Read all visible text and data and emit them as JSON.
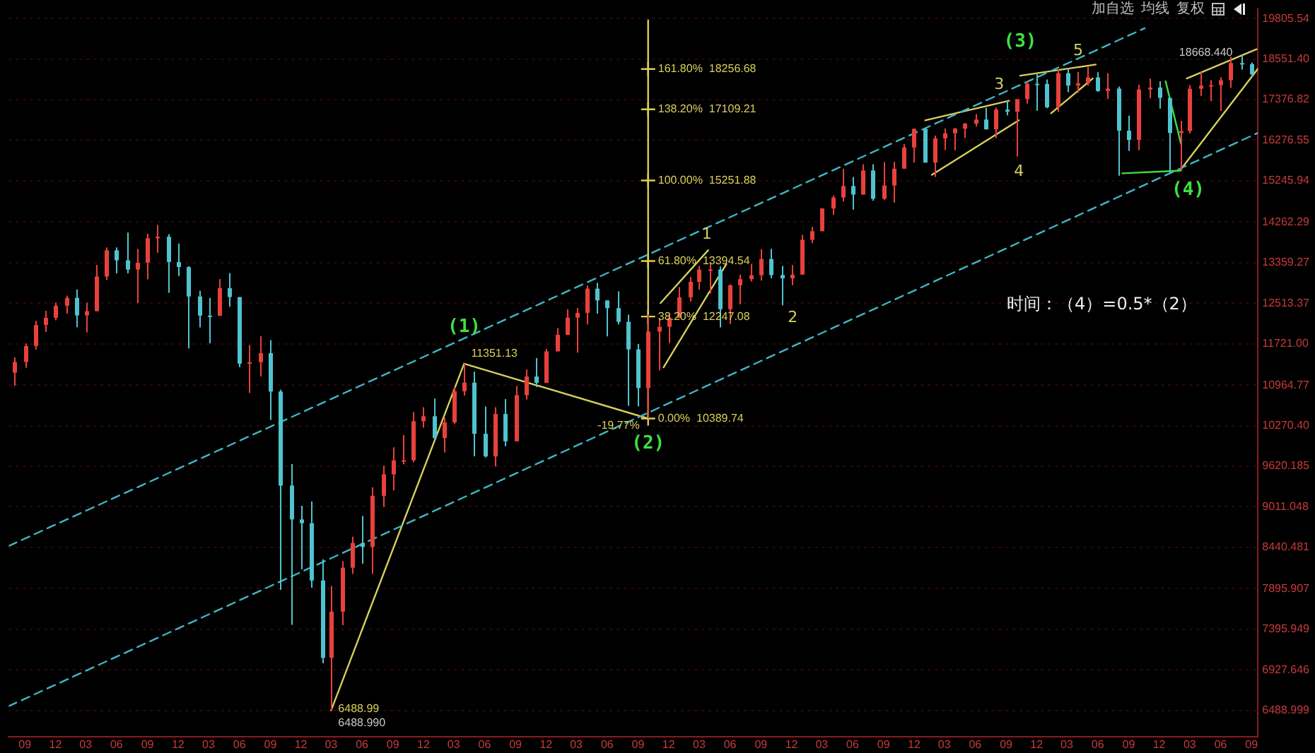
{
  "chart_data": {
    "type": "candlestick",
    "x": [
      "2006-08",
      "2006-09",
      "2006-10",
      "2006-11",
      "2006-12",
      "2007-01",
      "2007-02",
      "2007-03",
      "2007-04",
      "2007-05",
      "2007-06",
      "2007-07",
      "2007-08",
      "2007-09",
      "2007-10",
      "2007-11",
      "2007-12",
      "2008-01",
      "2008-02",
      "2008-03",
      "2008-04",
      "2008-05",
      "2008-06",
      "2008-07",
      "2008-08",
      "2008-09",
      "2008-10",
      "2008-11",
      "2008-12",
      "2009-01",
      "2009-02",
      "2009-03",
      "2009-04",
      "2009-05",
      "2009-06",
      "2009-07",
      "2009-08",
      "2009-09",
      "2009-10",
      "2009-11",
      "2009-12",
      "2010-01",
      "2010-02",
      "2010-03",
      "2010-04",
      "2010-05",
      "2010-06",
      "2010-07",
      "2010-08",
      "2010-09",
      "2010-10",
      "2010-11",
      "2010-12",
      "2011-01",
      "2011-02",
      "2011-03",
      "2011-04",
      "2011-05",
      "2011-06",
      "2011-07",
      "2011-08",
      "2011-09",
      "2011-10",
      "2011-11",
      "2011-12",
      "2012-01",
      "2012-02",
      "2012-03",
      "2012-04",
      "2012-05",
      "2012-06",
      "2012-07",
      "2012-08",
      "2012-09",
      "2012-10",
      "2012-11",
      "2012-12",
      "2013-01",
      "2013-02",
      "2013-03",
      "2013-04",
      "2013-05",
      "2013-06",
      "2013-07",
      "2013-08",
      "2013-09",
      "2013-10",
      "2013-11",
      "2013-12",
      "2014-01",
      "2014-02",
      "2014-03",
      "2014-04",
      "2014-05",
      "2014-06",
      "2014-07",
      "2014-08",
      "2014-09",
      "2014-10",
      "2014-11",
      "2014-12",
      "2015-01",
      "2015-02",
      "2015-03",
      "2015-04",
      "2015-05",
      "2015-06",
      "2015-07",
      "2015-08",
      "2015-09",
      "2015-10",
      "2015-11",
      "2015-12",
      "2016-01",
      "2016-02",
      "2016-03",
      "2016-04",
      "2016-05",
      "2016-06",
      "2016-07",
      "2016-08",
      "2016-09"
    ],
    "ohlc": [
      [
        11185,
        11465,
        10955,
        11381
      ],
      [
        11381,
        11725,
        11274,
        11679
      ],
      [
        11679,
        12163,
        11613,
        12081
      ],
      [
        12081,
        12361,
        11947,
        12222
      ],
      [
        12222,
        12529,
        12174,
        12463
      ],
      [
        12463,
        12666,
        12304,
        12622
      ],
      [
        12622,
        12796,
        12039,
        12269
      ],
      [
        12269,
        12524,
        11939,
        12354
      ],
      [
        12354,
        13312,
        12354,
        13063
      ],
      [
        13063,
        13692,
        12990,
        13628
      ],
      [
        13628,
        13692,
        13131,
        13409
      ],
      [
        13409,
        14022,
        13132,
        13212
      ],
      [
        13212,
        13658,
        12518,
        13358
      ],
      [
        13358,
        13996,
        13002,
        13896
      ],
      [
        13896,
        14198,
        13570,
        13930
      ],
      [
        13930,
        13987,
        12724,
        13372
      ],
      [
        13372,
        13779,
        13073,
        13265
      ],
      [
        13265,
        13279,
        11635,
        12650
      ],
      [
        12650,
        12767,
        12036,
        12266
      ],
      [
        12266,
        12622,
        11731,
        12263
      ],
      [
        12263,
        13010,
        12261,
        12820
      ],
      [
        12820,
        13136,
        12442,
        12638
      ],
      [
        12638,
        12638,
        11288,
        11350
      ],
      [
        11350,
        11698,
        10827,
        11378
      ],
      [
        11378,
        11867,
        11118,
        11544
      ],
      [
        11544,
        11790,
        10365,
        10851
      ],
      [
        10851,
        10882,
        7882,
        9325
      ],
      [
        9325,
        9654,
        7449,
        8829
      ],
      [
        8829,
        9026,
        8149,
        8776
      ],
      [
        8776,
        9088,
        7909,
        8001
      ],
      [
        8001,
        8280,
        7000,
        7063
      ],
      [
        7063,
        7932,
        6488.99,
        7609
      ],
      [
        7609,
        8254,
        7446,
        8168
      ],
      [
        8168,
        8588,
        8086,
        8500
      ],
      [
        8500,
        8878,
        8222,
        8447
      ],
      [
        8447,
        9297,
        8087,
        9172
      ],
      [
        9172,
        9630,
        9008,
        9496
      ],
      [
        9496,
        9918,
        9252,
        9712
      ],
      [
        9712,
        10119,
        9652,
        9713
      ],
      [
        9713,
        10496,
        9680,
        10345
      ],
      [
        10345,
        10580,
        10236,
        10428
      ],
      [
        10428,
        10730,
        10042,
        10067
      ],
      [
        10067,
        10402,
        9836,
        10325
      ],
      [
        10325,
        10933,
        10300,
        10857
      ],
      [
        10857,
        11351.13,
        10780,
        11009
      ],
      [
        11009,
        11205,
        9775,
        10137
      ],
      [
        10137,
        10594,
        9758,
        9774
      ],
      [
        9774,
        10580,
        9614,
        10466
      ],
      [
        10466,
        10720,
        9936,
        10015
      ],
      [
        10015,
        10948,
        10015,
        10788
      ],
      [
        10788,
        11246,
        10712,
        11118
      ],
      [
        11118,
        11451,
        10929,
        11006
      ],
      [
        11006,
        11625,
        11006,
        11578
      ],
      [
        11578,
        12020,
        11578,
        11892
      ],
      [
        11892,
        12391,
        11892,
        12226
      ],
      [
        12226,
        12419,
        11555,
        12320
      ],
      [
        12320,
        12876,
        12093,
        12811
      ],
      [
        12811,
        12929,
        12306,
        12570
      ],
      [
        12570,
        12570,
        11862,
        12414
      ],
      [
        12414,
        12754,
        12093,
        12143
      ],
      [
        12143,
        12285,
        10604,
        11614
      ],
      [
        11614,
        11717,
        10597,
        10913
      ],
      [
        10913,
        12284,
        10389.74,
        11955
      ],
      [
        11955,
        12208,
        11231,
        12046
      ],
      [
        12046,
        12293,
        11735,
        12218
      ],
      [
        12218,
        12841,
        12218,
        12633
      ],
      [
        12633,
        13056,
        12547,
        12952
      ],
      [
        12952,
        13289,
        12791,
        13212
      ],
      [
        13212,
        13338,
        12710,
        13214
      ],
      [
        13214,
        13280,
        12035,
        12393
      ],
      [
        12393,
        12899,
        12101,
        12880
      ],
      [
        12880,
        13103,
        12492,
        13009
      ],
      [
        13009,
        13331,
        12960,
        13091
      ],
      [
        13091,
        13653,
        12977,
        13437
      ],
      [
        13437,
        13662,
        13031,
        13096
      ],
      [
        13096,
        13290,
        12471,
        13026
      ],
      [
        13026,
        13307,
        12883,
        13104
      ],
      [
        13104,
        13970,
        13104,
        13861
      ],
      [
        13861,
        14150,
        13784,
        14054
      ],
      [
        14054,
        14585,
        14054,
        14579
      ],
      [
        14579,
        14888,
        14434,
        14840
      ],
      [
        14840,
        15543,
        14746,
        15116
      ],
      [
        15116,
        15341,
        14551,
        14910
      ],
      [
        14910,
        15658,
        14910,
        15500
      ],
      [
        15500,
        15658,
        14760,
        14810
      ],
      [
        14810,
        15710,
        14778,
        15130
      ],
      [
        15130,
        15722,
        14720,
        15546
      ],
      [
        15546,
        16175,
        15546,
        16086
      ],
      [
        16086,
        16588,
        15704,
        16577
      ],
      [
        16577,
        16589,
        15699,
        15699
      ],
      [
        15699,
        16399,
        15341,
        16322
      ],
      [
        16322,
        16588,
        16018,
        16458
      ],
      [
        16458,
        16604,
        16015,
        16581
      ],
      [
        16581,
        16736,
        16333,
        16717
      ],
      [
        16717,
        16978,
        16637,
        16827
      ],
      [
        16827,
        17152,
        16563,
        16563
      ],
      [
        16563,
        17153,
        16334,
        17098
      ],
      [
        17098,
        17350,
        16944,
        17043
      ],
      [
        17043,
        17395,
        15855,
        17391
      ],
      [
        17391,
        17895,
        17266,
        17828
      ],
      [
        17828,
        18103,
        17068,
        17823
      ],
      [
        17823,
        17951,
        17136,
        17165
      ],
      [
        17165,
        18244,
        17037,
        18133
      ],
      [
        18133,
        18289,
        17585,
        17776
      ],
      [
        17776,
        18175,
        17574,
        17841
      ],
      [
        17841,
        18351,
        17776,
        18011
      ],
      [
        18011,
        18160,
        17596,
        17620
      ],
      [
        17620,
        18137,
        17399,
        17690
      ],
      [
        17690,
        17750,
        15370,
        16528
      ],
      [
        16528,
        16933,
        16000,
        16285
      ],
      [
        16285,
        17799,
        16013,
        17664
      ],
      [
        17664,
        17978,
        17420,
        17720
      ],
      [
        17720,
        17899,
        17129,
        17425
      ],
      [
        17425,
        17425,
        15451,
        16466
      ],
      [
        16466,
        16795,
        15503,
        16517
      ],
      [
        16517,
        17790,
        16455,
        17685
      ],
      [
        17685,
        18168,
        17484,
        17774
      ],
      [
        17774,
        17934,
        17331,
        17787
      ],
      [
        17787,
        18017,
        17063,
        17930
      ],
      [
        17930,
        18622,
        17714,
        18432
      ],
      [
        18432,
        18668.44,
        18241,
        18401
      ],
      [
        18401,
        18450,
        18029,
        18100
      ]
    ],
    "colors": [
      "#e8413c",
      "#e8413c",
      "#e8413c",
      "#e8413c",
      "#e8413c",
      "#e8413c",
      "#4fc3cf",
      "#e8413c",
      "#e8413c",
      "#e8413c",
      "#4fc3cf",
      "#4fc3cf",
      "#e8413c",
      "#e8413c",
      "#e8413c",
      "#4fc3cf",
      "#4fc3cf",
      "#4fc3cf",
      "#4fc3cf",
      "#4fc3cf",
      "#e8413c",
      "#4fc3cf",
      "#4fc3cf",
      "#e8413c",
      "#e8413c",
      "#4fc3cf",
      "#4fc3cf",
      "#4fc3cf",
      "#4fc3cf",
      "#4fc3cf",
      "#4fc3cf",
      "#e8413c",
      "#e8413c",
      "#e8413c",
      "#4fc3cf",
      "#e8413c",
      "#e8413c",
      "#e8413c",
      "#e8413c",
      "#e8413c",
      "#e8413c",
      "#4fc3cf",
      "#e8413c",
      "#e8413c",
      "#e8413c",
      "#4fc3cf",
      "#4fc3cf",
      "#e8413c",
      "#4fc3cf",
      "#e8413c",
      "#e8413c",
      "#4fc3cf",
      "#e8413c",
      "#e8413c",
      "#e8413c",
      "#e8413c",
      "#e8413c",
      "#4fc3cf",
      "#4fc3cf",
      "#4fc3cf",
      "#4fc3cf",
      "#4fc3cf",
      "#e8413c",
      "#e8413c",
      "#e8413c",
      "#e8413c",
      "#e8413c",
      "#e8413c",
      "#e8413c",
      "#4fc3cf",
      "#e8413c",
      "#e8413c",
      "#e8413c",
      "#e8413c",
      "#4fc3cf",
      "#4fc3cf",
      "#e8413c",
      "#e8413c",
      "#e8413c",
      "#e8413c",
      "#e8413c",
      "#e8413c",
      "#4fc3cf",
      "#e8413c",
      "#4fc3cf",
      "#e8413c",
      "#e8413c",
      "#e8413c",
      "#e8413c",
      "#4fc3cf",
      "#e8413c",
      "#e8413c",
      "#e8413c",
      "#e8413c",
      "#e8413c",
      "#4fc3cf",
      "#e8413c",
      "#4fc3cf",
      "#e8413c",
      "#e8413c",
      "#4fc3cf",
      "#4fc3cf",
      "#e8413c",
      "#4fc3cf",
      "#e8413c",
      "#e8413c",
      "#4fc3cf",
      "#e8413c",
      "#4fc3cf",
      "#4fc3cf",
      "#e8413c",
      "#e8413c",
      "#4fc3cf",
      "#4fc3cf",
      "#e8413c",
      "#e8413c",
      "#e8413c",
      "#e8413c",
      "#e8413c",
      "#e8413c",
      "#4fc3cf",
      "#4fc3cf"
    ],
    "series": [
      {
        "type": "line",
        "color": "#3fb6c6",
        "line_style": "dashed",
        "x": [
          "2006-07-15",
          "2015-10-19"
        ],
        "values": [
          8460,
          19500
        ]
      },
      {
        "type": "line",
        "color": "#3fb6c6",
        "line_style": "dashed",
        "x": [
          "2006-07-15",
          "2016-09-20"
        ],
        "values": [
          6533,
          16470
        ]
      },
      {
        "type": "line",
        "color": "#d8cf5c",
        "x": [
          "2009-03",
          "2010-04",
          "2011-10"
        ],
        "values": [
          6488.99,
          11351.13,
          10389.74
        ]
      },
      {
        "type": "line",
        "color": "#d8cf5c",
        "x": [
          "2011-10",
          "2011-10"
        ],
        "values": [
          10389.74,
          19750
        ]
      },
      {
        "type": "scatter",
        "color": "#d8cf5c",
        "marker": "cross",
        "x": [
          "2011-10",
          "2011-10",
          "2011-10",
          "2011-10",
          "2011-10",
          "2011-10"
        ],
        "values": [
          10389.74,
          12247.08,
          13394.54,
          15251.88,
          17109.21,
          18256.68
        ]
      },
      {
        "type": "line",
        "color": "#d8cf5c",
        "x": [
          "2011-11-07",
          "2012-03-28"
        ],
        "values": [
          12517,
          13631
        ]
      },
      {
        "type": "line",
        "color": "#d8cf5c",
        "x": [
          "2011-11-16",
          "2012-05-21"
        ],
        "values": [
          11284,
          13330
        ]
      },
      {
        "type": "line",
        "color": "#d8cf5c",
        "x": [
          "2014-01-03",
          "2014-09-10"
        ],
        "values": [
          16807,
          17345
        ]
      },
      {
        "type": "line",
        "color": "#d8cf5c",
        "x": [
          "2014-01-23",
          "2014-10-09"
        ],
        "values": [
          15394,
          16807
        ]
      },
      {
        "type": "line",
        "color": "#d8cf5c",
        "x": [
          "2014-10-13",
          "2015-05-26"
        ],
        "values": [
          18061,
          18389
        ]
      },
      {
        "type": "line",
        "color": "#d8cf5c",
        "x": [
          "2015-01-13",
          "2015-05-17"
        ],
        "values": [
          16998,
          17980
        ]
      },
      {
        "type": "line",
        "color": "#3ee03e",
        "x": [
          "2015-08-13",
          "2016-02-04"
        ],
        "values": [
          15429,
          15499
        ]
      },
      {
        "type": "line",
        "color": "#3ee03e",
        "x": [
          "2015-12-20",
          "2016-02-04"
        ],
        "values": [
          17900,
          16181
        ]
      },
      {
        "type": "line",
        "color": "#d8cf5c",
        "x": [
          "2016-02-04",
          "2016-09-20"
        ],
        "values": [
          15534,
          18265
        ]
      },
      {
        "type": "line",
        "color": "#d8cf5c",
        "x": [
          "2016-02-21",
          "2016-09-16"
        ],
        "values": [
          17980,
          18849
        ]
      }
    ],
    "xlim": [
      "2006-07-15",
      "2016-09-20"
    ],
    "xticks": [
      {
        "value": "2006-09",
        "label": "09"
      },
      {
        "value": "2006-12",
        "label": "12"
      },
      {
        "value": "2007-03",
        "label": "03"
      },
      {
        "value": "2007-06",
        "label": "06"
      },
      {
        "value": "2007-09",
        "label": "09"
      },
      {
        "value": "2007-12",
        "label": "12"
      },
      {
        "value": "2008-03",
        "label": "03"
      },
      {
        "value": "2008-06",
        "label": "06"
      },
      {
        "value": "2008-09",
        "label": "09"
      },
      {
        "value": "2008-12",
        "label": "12"
      },
      {
        "value": "2009-03",
        "label": "03"
      },
      {
        "value": "2009-06",
        "label": "06"
      },
      {
        "value": "2009-09",
        "label": "09"
      },
      {
        "value": "2009-12",
        "label": "12"
      },
      {
        "value": "2010-03",
        "label": "03"
      },
      {
        "value": "2010-06",
        "label": "06"
      },
      {
        "value": "2010-09",
        "label": "09"
      },
      {
        "value": "2010-12",
        "label": "12"
      },
      {
        "value": "2011-03",
        "label": "03"
      },
      {
        "value": "2011-06",
        "label": "06"
      },
      {
        "value": "2011-09",
        "label": "09"
      },
      {
        "value": "2011-12",
        "label": "12"
      },
      {
        "value": "2012-03",
        "label": "03"
      },
      {
        "value": "2012-06",
        "label": "06"
      },
      {
        "value": "2012-09",
        "label": "09"
      },
      {
        "value": "2012-12",
        "label": "12"
      },
      {
        "value": "2013-03",
        "label": "03"
      },
      {
        "value": "2013-06",
        "label": "06"
      },
      {
        "value": "2013-09",
        "label": "09"
      },
      {
        "value": "2013-12",
        "label": "12"
      },
      {
        "value": "2014-03",
        "label": "03"
      },
      {
        "value": "2014-06",
        "label": "06"
      },
      {
        "value": "2014-09",
        "label": "09"
      },
      {
        "value": "2014-12",
        "label": "12"
      },
      {
        "value": "2015-03",
        "label": "03"
      },
      {
        "value": "2015-06",
        "label": "06"
      },
      {
        "value": "2015-09",
        "label": "09"
      },
      {
        "value": "2015-12",
        "label": "12"
      },
      {
        "value": "2016-03",
        "label": "03"
      },
      {
        "value": "2016-06",
        "label": "06"
      },
      {
        "value": "2016-09",
        "label": "09"
      }
    ],
    "ylim": [
      6220,
      20120
    ],
    "yticks": [
      19805.54,
      {
        "value": 18551.4,
        "label": "18551.40"
      },
      17376.82,
      16276.55,
      15245.94,
      14262.29,
      13359.27,
      12513.37,
      {
        "value": 11721,
        "label": "11721.00"
      },
      10964.77,
      {
        "value": 10270.4,
        "label": "10270.40"
      },
      9620.185,
      9011.048,
      8440.481,
      7895.907,
      7395.949,
      6927.646,
      6488.999
    ],
    "log": true,
    "grid": "y",
    "annotations": [
      {
        "text": "(1)",
        "x": "2010-04",
        "y": 11351.13
      },
      {
        "text": "(2)",
        "x": "2011-10",
        "y": 10389.74
      },
      {
        "text": "(3)",
        "x": "2014-10-13",
        "y": 18061
      },
      {
        "text": "(4)",
        "x": "2016-02-04",
        "y": 15499
      },
      {
        "text": "1",
        "x": "2012-03-28",
        "y": 13631
      },
      {
        "text": "2",
        "x": "2012-11",
        "y": 12471
      },
      {
        "text": "3",
        "x": "2014-09-10",
        "y": 17345
      },
      {
        "text": "4",
        "x": "2014-10",
        "y": 15855
      },
      {
        "text": "5",
        "x": "2015-03",
        "y": 18289
      },
      {
        "text": "11351.13",
        "x": "2010-04",
        "y": 11351.13
      },
      {
        "text": "-19.77%",
        "x": "2011-10",
        "y": 10389.74
      },
      {
        "text": "0.00%  10389.74",
        "x": "2011-10",
        "y": 10389.74
      },
      {
        "text": "38.20%  12247.08",
        "x": "2011-10",
        "y": 12247.08
      },
      {
        "text": "61.80%  13394.54",
        "x": "2011-10",
        "y": 13394.54
      },
      {
        "text": "100.00%  15251.88",
        "x": "2011-10",
        "y": 15251.88
      },
      {
        "text": "138.20%  17109.21",
        "x": "2011-10",
        "y": 17109.21
      },
      {
        "text": "161.80%  18256.68",
        "x": "2011-10",
        "y": 18256.68
      },
      {
        "text": "18668.440",
        "x": "2016-08",
        "y": 18668.44
      },
      {
        "text": "6488.99",
        "x": "2009-03",
        "y": 6488.99
      },
      {
        "text": "6488.990",
        "x": "2009-03",
        "y": 6488.99
      },
      "时间：（4）=0.5*（2）",
      "加自选",
      "均线",
      "复权"
    ]
  }
}
